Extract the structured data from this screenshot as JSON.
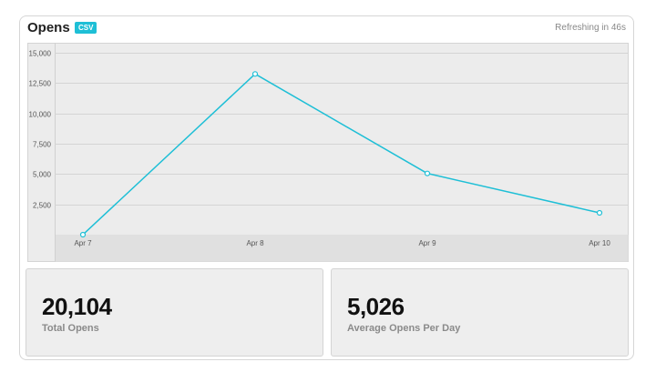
{
  "header": {
    "title": "Opens",
    "csv_label": "CSV",
    "refresh_text": "Refreshing in 46s"
  },
  "colors": {
    "accent": "#1ebfd6",
    "plot_background": "#ececec",
    "gridline": "#d4d4d4"
  },
  "chart_data": {
    "type": "line",
    "title": "",
    "xlabel": "",
    "ylabel": "",
    "categories": [
      "Apr 7",
      "Apr 8",
      "Apr 9",
      "Apr 10"
    ],
    "yticks": [
      2500,
      5000,
      7500,
      10000,
      12500,
      15000
    ],
    "ytick_labels": [
      "2,500",
      "5,000",
      "7,500",
      "10,000",
      "12,500",
      "15,000"
    ],
    "ylim": [
      0,
      15000
    ],
    "grid": true,
    "series": [
      {
        "values": [
          0,
          13250,
          5050,
          1800
        ]
      }
    ]
  },
  "stats": [
    {
      "value": "20,104",
      "label": "Total Opens"
    },
    {
      "value": "5,026",
      "label": "Average Opens Per Day"
    }
  ]
}
